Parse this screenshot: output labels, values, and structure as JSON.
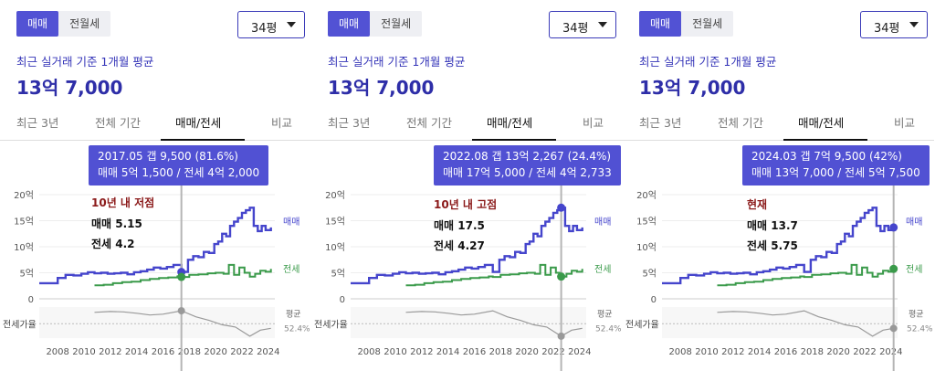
{
  "panels": [
    {
      "seg": [
        "매매",
        "전월세"
      ],
      "dropdown": "34평",
      "subtitle": "최근 실거래 기준 1개월 평균",
      "price": "13억 7,000",
      "tabs": [
        "최근 3년",
        "전체 기간",
        "매매/전세",
        "비교"
      ],
      "tooltip": {
        "line1": "2017.05  갭 9,500 (81.6%)",
        "line2": "매매 5억 1,500 / 전세 4억 2,000"
      },
      "annotation": {
        "title": "10년 내 저점",
        "sale": "매매 5.15",
        "jeonse": "전세 4.2"
      },
      "cursor_year": 2017.4,
      "sale_value": 5.15,
      "jeonse_value": 4.2,
      "ratio_value": 81.6
    },
    {
      "seg": [
        "매매",
        "전월세"
      ],
      "dropdown": "34평",
      "subtitle": "최근 실거래 기준 1개월 평균",
      "price": "13억 7,000",
      "tabs": [
        "최근 3년",
        "전체 기간",
        "매매/전세",
        "비교"
      ],
      "tooltip": {
        "line1": "2022.08  갭 13억 2,267 (24.4%)",
        "line2": "매매 17억 5,000 / 전세 4억 2,733"
      },
      "annotation": {
        "title": "10년 내 고점",
        "sale": "매매 17.5",
        "jeonse": "전세 4.27"
      },
      "cursor_year": 2022.6,
      "sale_value": 17.5,
      "jeonse_value": 4.27,
      "ratio_value": 24.4
    },
    {
      "seg": [
        "매매",
        "전월세"
      ],
      "dropdown": "34평",
      "subtitle": "최근 실거래 기준 1개월 평균",
      "price": "13억 7,000",
      "tabs": [
        "최근 3년",
        "전체 기간",
        "매매/전세",
        "비교"
      ],
      "tooltip": {
        "line1": "2024.03  갭 7억 9,500 (42%)",
        "line2": "매매 13억 7,000 / 전세 5억 7,500"
      },
      "annotation": {
        "title": "현재",
        "sale": "매매 13.7",
        "jeonse": "전세 5.75"
      },
      "cursor_year": 2024.2,
      "sale_value": 13.7,
      "jeonse_value": 5.75,
      "ratio_value": 42
    }
  ],
  "chart_data": {
    "type": "line",
    "x_ticks": [
      "2008",
      "2010",
      "2012",
      "2014",
      "2016",
      "2018",
      "2020",
      "2022",
      "2024"
    ],
    "y_ticks": [
      "20억",
      "15억",
      "10억",
      "5억",
      "0"
    ],
    "ylim": [
      0,
      20
    ],
    "xlim": [
      2006.6,
      2024.5
    ],
    "ratio_label": "전세가율",
    "avg_label": "평균",
    "avg_value": "52.4%",
    "series": [
      {
        "name": "매매",
        "color": "#4545cc",
        "x": [
          2006.6,
          2007.5,
          2008.0,
          2008.6,
          2009.2,
          2009.8,
          2010.3,
          2010.8,
          2011.3,
          2011.8,
          2012.3,
          2012.8,
          2013.3,
          2013.8,
          2014.3,
          2014.8,
          2015.3,
          2015.8,
          2016.3,
          2016.8,
          2017.4,
          2017.9,
          2018.3,
          2018.7,
          2019.1,
          2019.5,
          2019.9,
          2020.2,
          2020.5,
          2020.8,
          2021.1,
          2021.4,
          2021.7,
          2022.0,
          2022.3,
          2022.6,
          2022.9,
          2023.2,
          2023.5,
          2023.8,
          2024.2
        ],
        "values": [
          3.0,
          3.0,
          4.0,
          4.6,
          4.5,
          4.8,
          5.1,
          4.9,
          5.0,
          4.8,
          4.9,
          5.0,
          4.7,
          5.1,
          5.3,
          5.6,
          6.0,
          5.8,
          6.1,
          6.5,
          5.15,
          7.5,
          8.2,
          8.0,
          9.0,
          8.8,
          10.5,
          11.0,
          12.5,
          12.0,
          14.0,
          14.8,
          15.5,
          16.5,
          17.0,
          17.5,
          14.0,
          13.0,
          14.0,
          13.2,
          13.7
        ]
      },
      {
        "name": "전세",
        "color": "#3a9a4a",
        "x": [
          2010.8,
          2011.5,
          2012.2,
          2012.9,
          2013.6,
          2014.3,
          2015.0,
          2015.7,
          2016.4,
          2017.1,
          2017.4,
          2018.0,
          2018.7,
          2019.4,
          2020.0,
          2020.6,
          2021.0,
          2021.4,
          2021.8,
          2022.2,
          2022.6,
          2023.0,
          2023.4,
          2023.8,
          2024.2
        ],
        "values": [
          2.6,
          2.7,
          3.0,
          3.2,
          3.3,
          3.6,
          3.8,
          4.0,
          4.1,
          4.3,
          4.2,
          4.6,
          4.7,
          4.9,
          5.0,
          4.8,
          6.5,
          4.6,
          6.0,
          5.0,
          4.27,
          4.8,
          5.4,
          5.2,
          5.75
        ]
      },
      {
        "name": "전세가율",
        "color": "#9a9a9a",
        "x": [
          2010.8,
          2012.0,
          2013.0,
          2014.0,
          2015.0,
          2016.0,
          2017.4,
          2018.5,
          2019.5,
          2020.5,
          2021.5,
          2022.6,
          2023.4,
          2024.2
        ],
        "values": [
          78,
          80,
          79,
          76,
          72,
          74,
          81.6,
          68,
          60,
          50,
          45,
          24.4,
          38,
          42
        ]
      }
    ]
  }
}
